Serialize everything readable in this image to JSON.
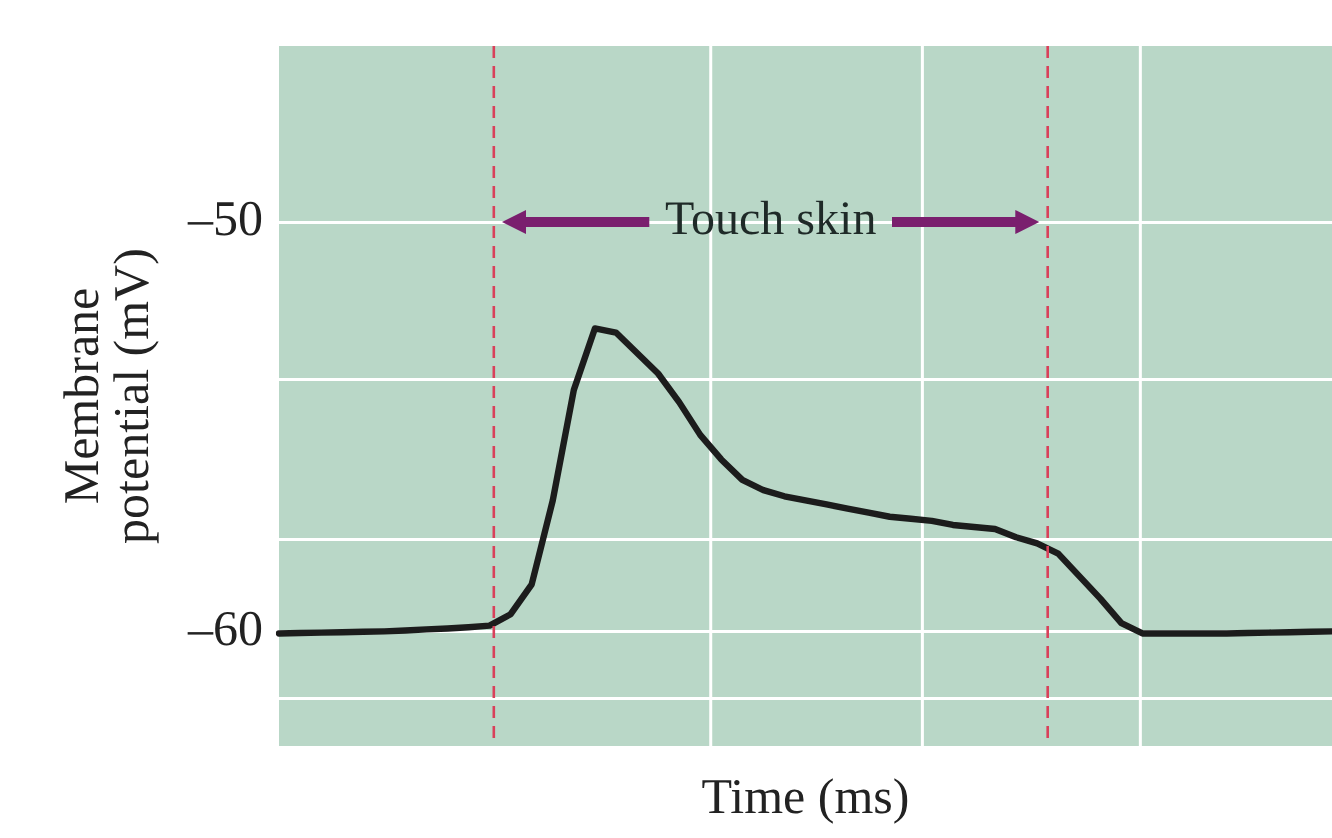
{
  "chart_data": {
    "type": "line",
    "xlabel": "Time (ms)",
    "ylabel": "Membrane potential (mV)",
    "categories": [
      null,
      null,
      null,
      null,
      null,
      null,
      null,
      null,
      null,
      null,
      null,
      null,
      null,
      null,
      null,
      null,
      null,
      null,
      null,
      null,
      null,
      null,
      null,
      null,
      null,
      null,
      null,
      null,
      null,
      null,
      null,
      null,
      null,
      null,
      null,
      null,
      null,
      null,
      null,
      null,
      null,
      null,
      null,
      null,
      null,
      null,
      null,
      null,
      null,
      null,
      null
    ],
    "series": [
      {
        "color": "#1c1c1c",
        "values": [
          -60.05,
          -60.04,
          -60.03,
          -60.02,
          -60.01,
          -60.0,
          -59.98,
          -59.95,
          -59.93,
          -59.9,
          -59.86,
          -59.58,
          -58.85,
          -56.8,
          -54.1,
          -52.6,
          -52.7,
          -53.2,
          -53.7,
          -54.4,
          -55.2,
          -55.8,
          -56.3,
          -56.55,
          -56.7,
          -56.8,
          -56.9,
          -57.0,
          -57.1,
          -57.2,
          -57.25,
          -57.3,
          -57.4,
          -57.45,
          -57.5,
          -57.7,
          -57.85,
          -58.1,
          -58.65,
          -59.2,
          -59.8,
          -60.05,
          -60.05,
          -60.05,
          -60.05,
          -60.05,
          -60.04,
          -60.03,
          -60.02,
          -60.01,
          -60.0
        ]
      }
    ],
    "ylim": [
      -62.8,
      -45.7
    ],
    "yticks": [
      {
        "value": -50,
        "label": "–50"
      },
      {
        "value": -53.85,
        "label": null
      },
      {
        "value": -57.75,
        "label": null
      },
      {
        "value": -60,
        "label": "–60"
      },
      {
        "value": -61.65,
        "label": null
      }
    ],
    "tick_labels": "y",
    "grid": "y",
    "legend": false,
    "marker": "none",
    "line_style": "solid",
    "annotations": [
      "Touch skin"
    ]
  }
}
